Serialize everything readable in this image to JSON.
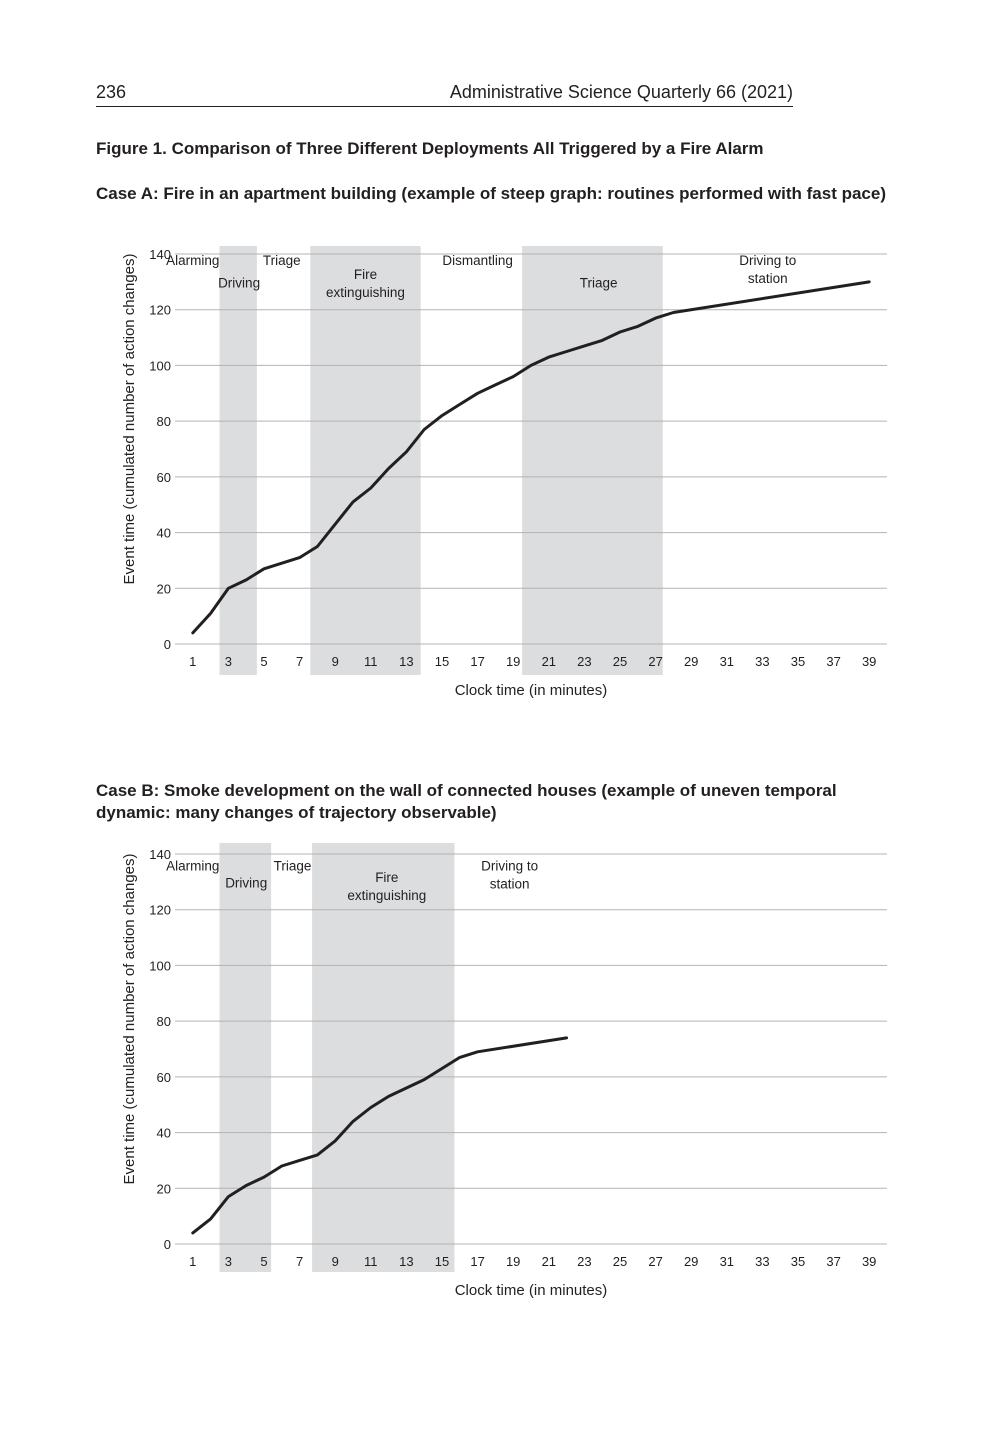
{
  "header": {
    "page_number": "236",
    "journal": "Administrative Science Quarterly 66 (2021)"
  },
  "figure_title": "Figure 1.  Comparison of Three Different Deployments All Triggered by a Fire Alarm",
  "colors": {
    "band": "#dcdddf",
    "line": "#231f20",
    "grid": "#b3b3b3"
  },
  "chart_data": [
    {
      "type": "line",
      "title": "Case A: Fire in an apartment building (example of steep graph: routines performed with fast pace)",
      "xlabel": "Clock time (in minutes)",
      "ylabel": "Event time (cumulated number of action changes)",
      "xlim": [
        0,
        40
      ],
      "ylim": [
        0,
        140
      ],
      "x_ticks": [
        "1",
        "3",
        "5",
        "7",
        "9",
        "11",
        "13",
        "15",
        "17",
        "19",
        "21",
        "23",
        "25",
        "27",
        "29",
        "31",
        "33",
        "35",
        "37",
        "39"
      ],
      "y_ticks": [
        "0",
        "20",
        "40",
        "60",
        "80",
        "100",
        "120",
        "140"
      ],
      "grid": "horizontal",
      "shaded_bands": [
        [
          2.5,
          4.6
        ],
        [
          7.6,
          13.8
        ],
        [
          19.5,
          27.4
        ]
      ],
      "phases": [
        {
          "label": [
            "Alarming"
          ],
          "x": 1,
          "y": 136
        },
        {
          "label": [
            "Driving"
          ],
          "x": 3.6,
          "y": 128
        },
        {
          "label": [
            "Triage"
          ],
          "x": 6.0,
          "y": 136
        },
        {
          "label": [
            "Fire",
            "extinguishing"
          ],
          "x": 10.7,
          "y": 131
        },
        {
          "label": [
            "Dismantling"
          ],
          "x": 17.0,
          "y": 136
        },
        {
          "label": [
            "Triage"
          ],
          "x": 23.8,
          "y": 128
        },
        {
          "label": [
            "Driving to",
            "station"
          ],
          "x": 33.3,
          "y": 136
        }
      ],
      "series": [
        {
          "x": [
            1,
            2,
            3,
            4,
            5,
            6,
            7,
            8,
            9,
            10,
            11,
            12,
            13,
            14,
            15,
            16,
            17,
            18,
            19,
            20,
            21,
            22,
            23,
            24,
            25,
            26,
            27,
            28,
            39
          ],
          "y": [
            4,
            11,
            20,
            23,
            27,
            29,
            31,
            35,
            43,
            51,
            56,
            63,
            69,
            77,
            82,
            86,
            90,
            93,
            96,
            100,
            103,
            105,
            107,
            109,
            112,
            114,
            117,
            119,
            130
          ]
        }
      ]
    },
    {
      "type": "line",
      "title": "Case B: Smoke development on the wall of connected houses (example of uneven temporal dynamic: many changes of trajectory observable)",
      "xlabel": "Clock time (in minutes)",
      "ylabel": "Event time (cumulated number of action changes)",
      "xlim": [
        0,
        40
      ],
      "ylim": [
        0,
        140
      ],
      "x_ticks": [
        "1",
        "3",
        "5",
        "7",
        "9",
        "11",
        "13",
        "15",
        "17",
        "19",
        "21",
        "23",
        "25",
        "27",
        "29",
        "31",
        "33",
        "35",
        "37",
        "39"
      ],
      "y_ticks": [
        "0",
        "20",
        "40",
        "60",
        "80",
        "100",
        "120",
        "140"
      ],
      "grid": "horizontal",
      "shaded_bands": [
        [
          2.5,
          5.4
        ],
        [
          7.7,
          15.7
        ]
      ],
      "phases": [
        {
          "label": [
            "Alarming"
          ],
          "x": 1.0,
          "y": 134
        },
        {
          "label": [
            "Driving"
          ],
          "x": 4.0,
          "y": 128
        },
        {
          "label": [
            "Triage"
          ],
          "x": 6.6,
          "y": 134
        },
        {
          "label": [
            "Fire",
            "extinguishing"
          ],
          "x": 11.9,
          "y": 130
        },
        {
          "label": [
            "Driving to",
            "station"
          ],
          "x": 18.8,
          "y": 134
        }
      ],
      "series": [
        {
          "x": [
            1,
            2,
            3,
            4,
            5,
            6,
            7,
            8,
            9,
            10,
            11,
            12,
            13,
            14,
            15,
            16,
            17,
            22
          ],
          "y": [
            4,
            9,
            17,
            21,
            24,
            28,
            30,
            32,
            37,
            44,
            49,
            53,
            56,
            59,
            63,
            67,
            69,
            74
          ]
        }
      ]
    }
  ]
}
